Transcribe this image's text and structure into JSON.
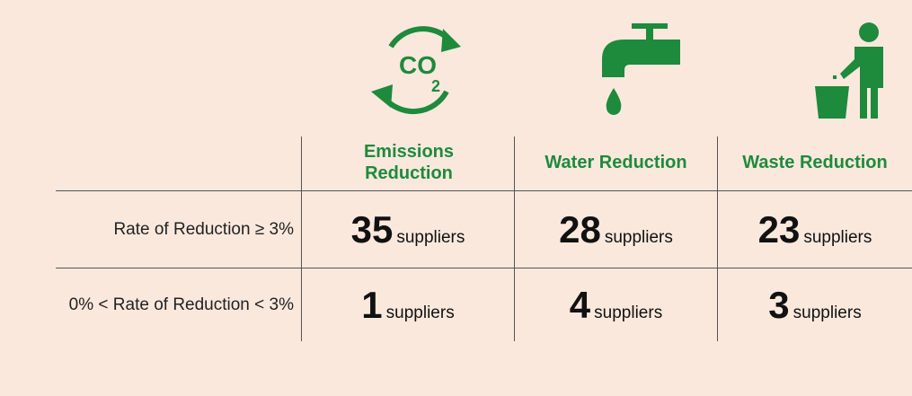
{
  "table": {
    "columns": [
      "Emissions Reduction",
      "Water Reduction",
      "Waste Reduction"
    ],
    "rows": [
      {
        "label": "Rate of Reduction ≥ 3%",
        "cells": [
          {
            "count": 35,
            "unit": "suppliers"
          },
          {
            "count": 28,
            "unit": "suppliers"
          },
          {
            "count": 23,
            "unit": "suppliers"
          }
        ]
      },
      {
        "label": "0% < Rate of Reduction < 3%",
        "cells": [
          {
            "count": 1,
            "unit": "suppliers"
          },
          {
            "count": 4,
            "unit": "suppliers"
          },
          {
            "count": 3,
            "unit": "suppliers"
          }
        ]
      }
    ]
  }
}
